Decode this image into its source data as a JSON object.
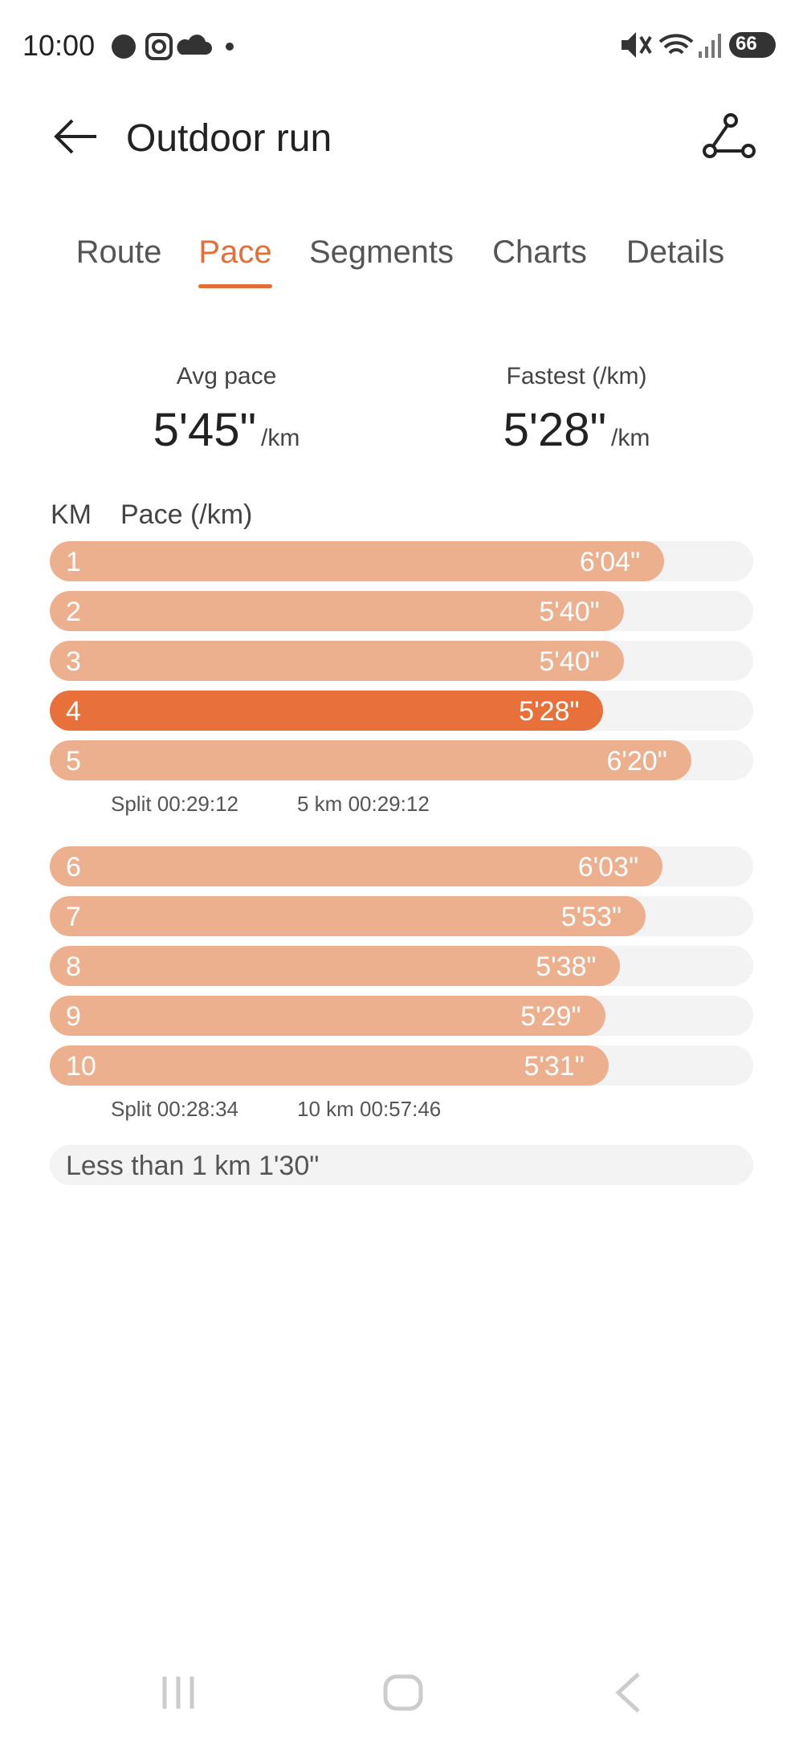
{
  "status_bar": {
    "time": "10:00",
    "battery": "66"
  },
  "header": {
    "title": "Outdoor run"
  },
  "tabs": [
    "Route",
    "Pace",
    "Segments",
    "Charts",
    "Details"
  ],
  "summary": [
    {
      "label": "Avg pace",
      "value": "5'45\"",
      "unit": "/km"
    },
    {
      "label": "Fastest (/km)",
      "value": "5'28\"",
      "unit": "/km"
    }
  ],
  "pace_table": {
    "headers": [
      "KM",
      "Pace (/km)"
    ],
    "groups": [
      {
        "rows": [
          {
            "km": 1,
            "pace": "6'04\""
          },
          {
            "km": 2,
            "pace": "5'40\""
          },
          {
            "km": 3,
            "pace": "5'40\""
          },
          {
            "km": 4,
            "pace": "5'28\""
          },
          {
            "km": 5,
            "pace": "6'20\""
          }
        ],
        "split": "Split 00:29:12",
        "total": "5 km 00:29:12"
      },
      {
        "rows": [
          {
            "km": 6,
            "pace": "6'03\""
          },
          {
            "km": 7,
            "pace": "5'53\""
          },
          {
            "km": 8,
            "pace": "5'38\""
          },
          {
            "km": 9,
            "pace": "5'29\""
          },
          {
            "km": 10,
            "pace": "5'31\""
          }
        ],
        "split": "Split 00:28:34",
        "total": "10 km 00:57:46"
      }
    ],
    "remainder": "Less than 1 km 1'30\""
  }
}
